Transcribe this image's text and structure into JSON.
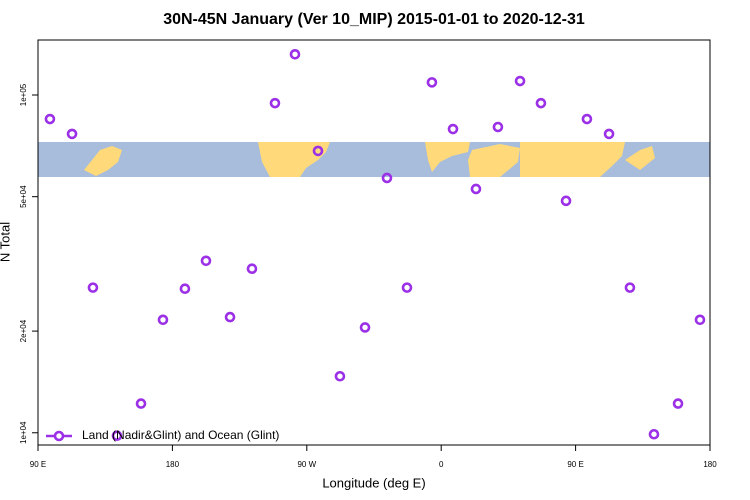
{
  "chart_data": {
    "type": "scatter",
    "title": "30N-45N January (Ver 10_MIP)   2015-01-01 to 2020-12-31",
    "xlabel": "Longitude (deg E)",
    "ylabel": "N Total",
    "ylog": true,
    "xlim": [
      90,
      540
    ],
    "ylim": [
      9200,
      145500
    ],
    "xticks": [
      {
        "value": 90,
        "label": "90 E"
      },
      {
        "value": 180,
        "label": "180"
      },
      {
        "value": 270,
        "label": "90 W"
      },
      {
        "value": 360,
        "label": "0"
      },
      {
        "value": 450,
        "label": "90 E"
      },
      {
        "value": 540,
        "label": "180"
      }
    ],
    "yticks": [
      {
        "value": 10000,
        "label": "1e+04"
      },
      {
        "value": 20000,
        "label": "2e+04"
      },
      {
        "value": 50000,
        "label": "5e+04"
      },
      {
        "value": 100000,
        "label": "1e+05"
      }
    ],
    "legend": "bottomleft",
    "series": [
      {
        "name": "Land (Nadir&Glint) and Ocean (Glint)",
        "color": "#9b30e6",
        "x": [
          98,
          112.8,
          126.8,
          142.9,
          159,
          173.7,
          188.4,
          202.5,
          218.6,
          233.3,
          248.7,
          262.1,
          277.5,
          292.2,
          309,
          323.7,
          337.1,
          353.8,
          367.9,
          383.3,
          398,
          412.8,
          426.8,
          443.6,
          457.6,
          472.4,
          486.4,
          502.5,
          518.6,
          533.3
        ],
        "values": [
          84900,
          76700,
          26900,
          9800,
          12200,
          21600,
          26700,
          32300,
          22000,
          30600,
          94600,
          132000,
          68300,
          14700,
          20500,
          56800,
          26900,
          109000,
          79300,
          52700,
          80400,
          110000,
          94600,
          48600,
          84900,
          76700,
          26900,
          9900,
          12200,
          21600
        ]
      }
    ]
  }
}
